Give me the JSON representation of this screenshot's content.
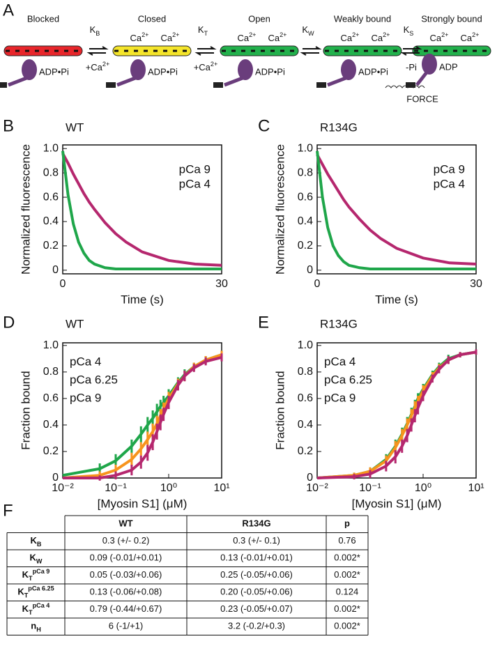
{
  "diagram": {
    "panel_label": "A",
    "states": [
      {
        "name": "Blocked",
        "nucleotide": "ADP•Pi"
      },
      {
        "name": "Closed",
        "calcium": [
          {
            "main": "Ca",
            "sup": "2+"
          },
          {
            "main": "Ca",
            "sup": "2+"
          }
        ],
        "nucleotide": "ADP•Pi"
      },
      {
        "name": "Open",
        "calcium": [
          {
            "main": "Ca",
            "sup": "2+"
          },
          {
            "main": "Ca",
            "sup": "2+"
          }
        ],
        "nucleotide": "ADP•Pi"
      },
      {
        "name": "Weakly bound",
        "calcium": [
          {
            "main": "Ca",
            "sup": "2+"
          },
          {
            "main": "Ca",
            "sup": "2+"
          }
        ],
        "nucleotide": "ADP•Pi"
      },
      {
        "name": "Strongly bound",
        "calcium": [
          {
            "main": "Ca",
            "sup": "2+"
          },
          {
            "main": "Ca",
            "sup": "2+"
          }
        ],
        "nucleotide": "ADP",
        "force": "FORCE"
      }
    ],
    "transitions": [
      {
        "rate": {
          "main": "K",
          "sub": "B"
        },
        "condition": {
          "main": "+Ca",
          "sup": "2+"
        }
      },
      {
        "rate": {
          "main": "K",
          "sub": "T"
        },
        "condition": {
          "main": "+Ca",
          "sup": "2+"
        }
      },
      {
        "rate": {
          "main": "K",
          "sub": "W"
        }
      },
      {
        "rate": {
          "main": "K",
          "sub": "S"
        },
        "condition": {
          "main": "-Pi"
        }
      }
    ]
  },
  "chart_data": [
    {
      "type": "line",
      "panel_label": "B",
      "title": "WT",
      "title_color": "#000000",
      "xlabel": "Time (s)",
      "ylabel": "Normalized fluorescence",
      "x": [
        0,
        1,
        2,
        3,
        4,
        5,
        6,
        8,
        10,
        12,
        15,
        20,
        25,
        30
      ],
      "series": [
        {
          "name": "pCa 9",
          "color": "#b5276e",
          "values": [
            0.96,
            0.88,
            0.79,
            0.71,
            0.63,
            0.56,
            0.5,
            0.39,
            0.3,
            0.23,
            0.15,
            0.08,
            0.05,
            0.04
          ]
        },
        {
          "name": "pCa 4",
          "color": "#1fa64a",
          "values": [
            0.98,
            0.62,
            0.38,
            0.23,
            0.14,
            0.08,
            0.05,
            0.02,
            0.01,
            0.01,
            0.01,
            0.01,
            0.01,
            0.01
          ]
        }
      ],
      "xlim": [
        0,
        30
      ],
      "xticks": [
        0,
        30
      ],
      "ylim": [
        -0.03,
        1.03
      ],
      "yticks": [
        0,
        0.2,
        0.4,
        0.6,
        0.8,
        {
          "value": 1,
          "label": "1.0"
        }
      ],
      "legend": "upper right"
    },
    {
      "type": "line",
      "panel_label": "C",
      "title": "R134G",
      "title_color": "#29abe2",
      "xlabel": "Time (s)",
      "ylabel": "Normalized fluorescence",
      "x": [
        0,
        1,
        2,
        3,
        4,
        5,
        6,
        8,
        10,
        12,
        15,
        20,
        25,
        30
      ],
      "series": [
        {
          "name": "pCa 9",
          "color": "#b5276e",
          "values": [
            0.95,
            0.87,
            0.79,
            0.72,
            0.65,
            0.58,
            0.52,
            0.42,
            0.33,
            0.26,
            0.18,
            0.1,
            0.06,
            0.05
          ]
        },
        {
          "name": "pCa 4",
          "color": "#1fa64a",
          "values": [
            0.98,
            0.6,
            0.35,
            0.2,
            0.12,
            0.07,
            0.04,
            0.02,
            0.01,
            0.01,
            0.01,
            0.01,
            0.01,
            0.01
          ]
        }
      ],
      "xlim": [
        0,
        30
      ],
      "xticks": [
        0,
        30
      ],
      "ylim": [
        -0.03,
        1.03
      ],
      "yticks": [
        0,
        0.2,
        0.4,
        0.6,
        0.8,
        {
          "value": 1,
          "label": "1.0"
        }
      ],
      "legend": "upper right"
    },
    {
      "type": "line",
      "panel_label": "D",
      "title": "WT",
      "title_color": "#000000",
      "xlabel": "[Myosin S1] (μM)",
      "ylabel": "Fraction bound",
      "xscale": "log",
      "x": [
        0.01,
        0.05,
        0.1,
        0.2,
        0.3,
        0.4,
        0.5,
        0.6,
        0.7,
        0.8,
        1,
        1.5,
        2,
        3,
        5,
        10
      ],
      "series": [
        {
          "name": "pCa 4",
          "color": "#1fa64a",
          "values": [
            0.02,
            0.07,
            0.13,
            0.24,
            0.33,
            0.4,
            0.45,
            0.5,
            0.54,
            0.57,
            0.62,
            0.72,
            0.78,
            0.84,
            0.89,
            0.93
          ],
          "errors": [
            null,
            0.04,
            0.05,
            0.05,
            0.06,
            0.06,
            0.06,
            0.06,
            0.05,
            0.05,
            0.05,
            0.04,
            0.04,
            0.03,
            0.03,
            0.03
          ]
        },
        {
          "name": "pCa 6.25",
          "color": "#f7941d",
          "values": [
            0,
            0.02,
            0.06,
            0.14,
            0.22,
            0.29,
            0.35,
            0.41,
            0.47,
            0.52,
            0.6,
            0.71,
            0.77,
            0.84,
            0.89,
            0.93
          ],
          "errors": [
            null,
            0.03,
            0.04,
            0.05,
            0.05,
            0.06,
            0.06,
            0.06,
            0.05,
            0.05,
            0.05,
            0.04,
            0.04,
            0.03,
            0.03,
            0.03
          ]
        },
        {
          "name": "pCa 9",
          "color": "#b5276e",
          "values": [
            0,
            0,
            0.02,
            0.06,
            0.12,
            0.19,
            0.27,
            0.35,
            0.42,
            0.48,
            0.57,
            0.7,
            0.77,
            0.83,
            0.88,
            0.91
          ],
          "errors": [
            null,
            0.02,
            0.03,
            0.04,
            0.05,
            0.06,
            0.06,
            0.06,
            0.06,
            0.05,
            0.05,
            0.04,
            0.04,
            0.03,
            0.03,
            0.03
          ]
        }
      ],
      "xlim": [
        0.01,
        10
      ],
      "xticks": [
        {
          "value": 0.01,
          "label": "10⁻²"
        },
        {
          "value": 0.1,
          "label": "10⁻¹"
        },
        {
          "value": 1,
          "label": "10⁰"
        },
        {
          "value": 10,
          "label": "10¹"
        }
      ],
      "ylim": [
        0,
        1.02
      ],
      "yticks": [
        0,
        0.2,
        0.4,
        0.6,
        0.8,
        {
          "value": 1,
          "label": "1.0"
        }
      ],
      "legend": "upper left"
    },
    {
      "type": "line",
      "panel_label": "E",
      "title": "R134G",
      "title_color": "#29abe2",
      "xlabel": "[Myosin S1] (μM)",
      "ylabel": "Fraction bound",
      "xscale": "log",
      "x": [
        0.01,
        0.05,
        0.1,
        0.2,
        0.3,
        0.4,
        0.5,
        0.6,
        0.7,
        0.8,
        1,
        1.5,
        2,
        3,
        5,
        10
      ],
      "series": [
        {
          "name": "pCa 4",
          "color": "#1fa64a",
          "values": [
            0,
            0.02,
            0.05,
            0.14,
            0.24,
            0.33,
            0.41,
            0.48,
            0.54,
            0.6,
            0.67,
            0.78,
            0.84,
            0.9,
            0.93,
            0.95
          ],
          "errors": [
            null,
            0.02,
            0.03,
            0.04,
            0.05,
            0.05,
            0.05,
            0.05,
            0.05,
            0.04,
            0.04,
            0.03,
            0.03,
            0.03,
            0.02,
            0.02
          ]
        },
        {
          "name": "pCa 6.25",
          "color": "#f7941d",
          "values": [
            0,
            0.02,
            0.05,
            0.13,
            0.23,
            0.32,
            0.4,
            0.47,
            0.53,
            0.58,
            0.66,
            0.77,
            0.83,
            0.89,
            0.93,
            0.95
          ],
          "errors": [
            null,
            0.02,
            0.03,
            0.04,
            0.05,
            0.05,
            0.05,
            0.05,
            0.05,
            0.04,
            0.04,
            0.03,
            0.03,
            0.03,
            0.02,
            0.02
          ]
        },
        {
          "name": "pCa 9",
          "color": "#b5276e",
          "values": [
            0,
            0.01,
            0.03,
            0.09,
            0.16,
            0.24,
            0.32,
            0.4,
            0.47,
            0.53,
            0.62,
            0.75,
            0.82,
            0.89,
            0.93,
            0.95
          ],
          "errors": [
            null,
            0.02,
            0.03,
            0.04,
            0.05,
            0.05,
            0.05,
            0.05,
            0.05,
            0.05,
            0.04,
            0.03,
            0.03,
            0.03,
            0.02,
            0.02
          ]
        }
      ],
      "xlim": [
        0.01,
        10
      ],
      "xticks": [
        {
          "value": 0.01,
          "label": "10⁻²"
        },
        {
          "value": 0.1,
          "label": "10⁻¹"
        },
        {
          "value": 1,
          "label": "10⁰"
        },
        {
          "value": 10,
          "label": "10¹"
        }
      ],
      "ylim": [
        0,
        1.02
      ],
      "yticks": [
        0,
        0.2,
        0.4,
        0.6,
        0.8,
        {
          "value": 1,
          "label": "1.0"
        }
      ],
      "legend": "upper left"
    }
  ],
  "table": {
    "panel_label": "F",
    "header": [
      "WT",
      "R134G",
      "p"
    ],
    "rows": [
      {
        "label": {
          "main": "K",
          "sub": "B"
        },
        "cells": [
          "0.3 (+/- 0.2)",
          "0.3 (+/- 0.1)",
          "0.76"
        ]
      },
      {
        "label": {
          "main": "K",
          "sub": "W"
        },
        "cells": [
          "0.09 (-0.01/+0.01)",
          "0.13 (-0.01/+0.01)",
          "0.002*"
        ]
      },
      {
        "label": {
          "main": "K",
          "sub": "T",
          "sup": "pCa 9"
        },
        "cells": [
          "0.05 (-0.03/+0.06)",
          "0.25 (-0.05/+0.06)",
          "0.002*"
        ]
      },
      {
        "label": {
          "main": "K",
          "sub": "T",
          "sup": "pCa 6.25"
        },
        "cells": [
          "0.13 (-0.06/+0.08)",
          "0.20 (-0.05/+0.06)",
          "0.124"
        ]
      },
      {
        "label": {
          "main": "K",
          "sub": "T",
          "sup": "pCa 4"
        },
        "cells": [
          "0.79 (-0.44/+0.67)",
          "0.23 (-0.05/+0.07)",
          "0.002*"
        ]
      },
      {
        "label": {
          "main": "n",
          "sub": "H"
        },
        "cells": [
          "6 (-1/+1)",
          "3.2 (-0.2/+0.3)",
          "0.002*"
        ]
      }
    ]
  }
}
